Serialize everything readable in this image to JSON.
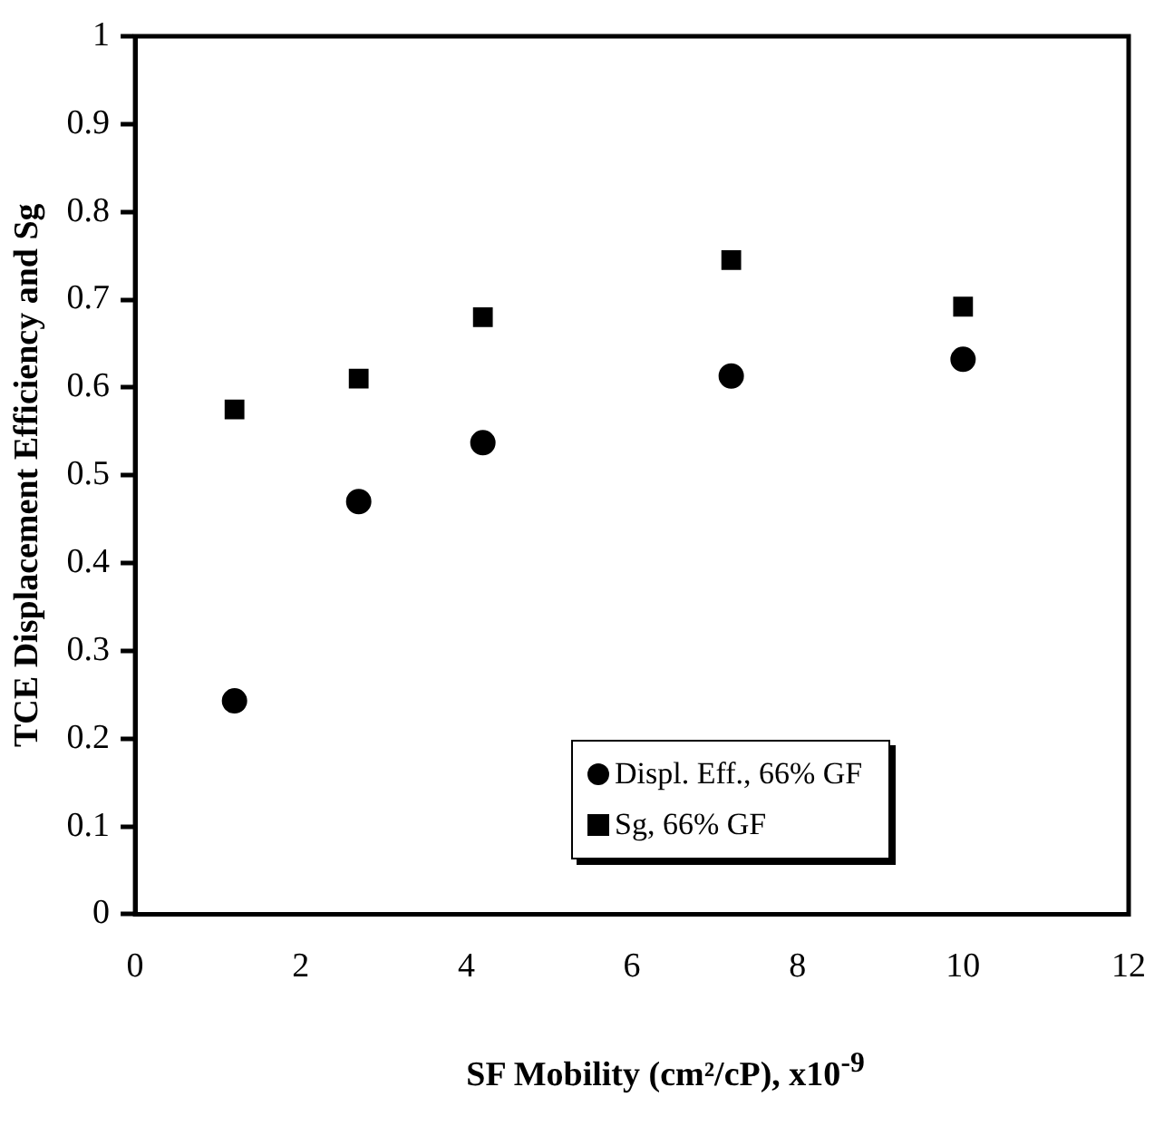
{
  "chart_data": {
    "type": "scatter",
    "xlabel": "SF Mobility (cm²/cP), x10$^{-9}$",
    "ylabel": "TCE Displacement Efficiency and Sg",
    "x": [
      1.2,
      2.7,
      4.2,
      7.2,
      10
    ],
    "series": [
      {
        "name": "Displ. Eff., 66% GF",
        "color": "#000000",
        "marker": "circle",
        "values": [
          0.243,
          0.47,
          0.537,
          0.613,
          0.632
        ]
      },
      {
        "name": "Sg, 66% GF",
        "color": "#000000",
        "marker": "square",
        "values": [
          0.575,
          0.61,
          0.68,
          0.745,
          0.692
        ]
      }
    ],
    "xlim": [
      0,
      12
    ],
    "xticks": [
      0,
      2,
      4,
      6,
      8,
      10,
      12
    ],
    "ylim": [
      0,
      1
    ],
    "yticks": [
      0,
      0.1,
      0.2,
      0.3,
      0.4,
      0.5,
      0.6,
      0.7,
      0.8,
      0.9,
      1
    ],
    "grid": false,
    "legend": "bottom right"
  }
}
